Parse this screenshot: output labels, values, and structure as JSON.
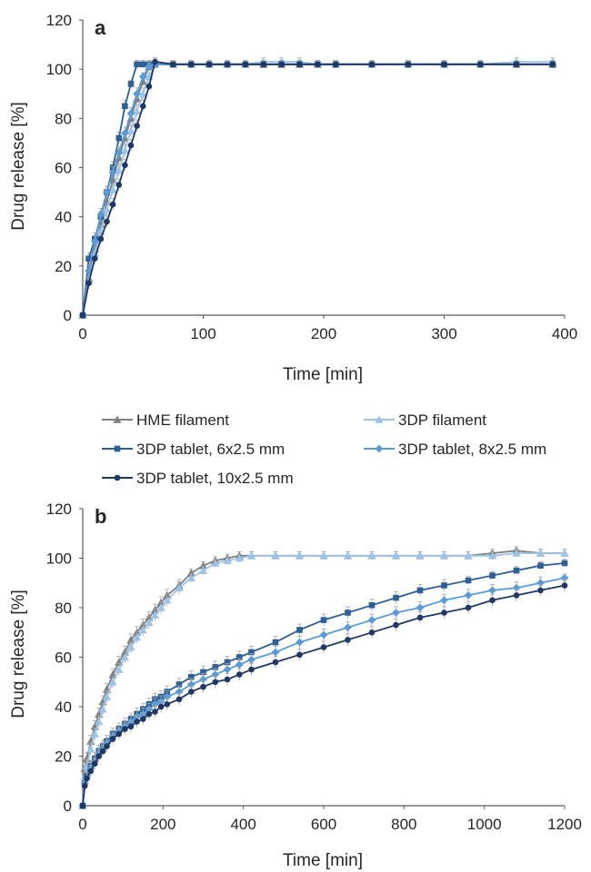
{
  "legend": {
    "placement": "between-panels",
    "entries": [
      {
        "name": "HME filament",
        "color": "#7f7f7f",
        "marker": "triangle"
      },
      {
        "name": "3DP filament",
        "color": "#9dc3e6",
        "marker": "triangle"
      },
      {
        "name": "3DP tablet, 6x2.5 mm",
        "color": "#2e5f96",
        "marker": "square"
      },
      {
        "name": "3DP tablet, 8x2.5 mm",
        "color": "#5b9bd5",
        "marker": "diamond"
      },
      {
        "name": "3DP tablet, 10x2.5 mm",
        "color": "#203864",
        "marker": "circle"
      }
    ]
  },
  "chart_data": [
    {
      "type": "line",
      "panel_label": "a",
      "xlabel": "Time [min]",
      "ylabel": "Drug release [%]",
      "xlim": [
        0,
        400
      ],
      "ylim": [
        0,
        120
      ],
      "xticks": [
        0,
        100,
        200,
        300,
        400
      ],
      "yticks": [
        0,
        20,
        40,
        60,
        80,
        100,
        120
      ],
      "grid": false,
      "series": [
        {
          "name": "HME filament",
          "color": "#7f7f7f",
          "marker": "triangle",
          "x": [
            0,
            5,
            10,
            15,
            20,
            25,
            30,
            35,
            40,
            45,
            50,
            55,
            60,
            75,
            90,
            105,
            120,
            135,
            150,
            165,
            180,
            195,
            210,
            240,
            270,
            300,
            330,
            360,
            390
          ],
          "y": [
            0,
            15,
            27,
            37,
            46,
            55,
            64,
            72,
            80,
            88,
            95,
            101,
            103,
            102,
            102,
            102,
            102,
            102,
            102,
            102,
            102,
            102,
            102,
            102,
            102,
            102,
            102,
            102,
            102
          ]
        },
        {
          "name": "3DP filament",
          "color": "#9dc3e6",
          "marker": "triangle",
          "x": [
            0,
            5,
            10,
            15,
            20,
            25,
            30,
            35,
            40,
            45,
            50,
            55,
            60,
            75,
            90,
            105,
            120,
            135,
            150,
            165,
            180,
            195,
            210,
            240,
            270,
            300,
            330,
            360,
            390
          ],
          "y": [
            0,
            14,
            25,
            34,
            43,
            51,
            59,
            67,
            75,
            83,
            90,
            97,
            102,
            102,
            102,
            102,
            102,
            102,
            103,
            103,
            103,
            102,
            102,
            102,
            102,
            102,
            102,
            103,
            103
          ]
        },
        {
          "name": "3DP tablet, 6x2.5 mm",
          "color": "#2e5f96",
          "marker": "square",
          "x": [
            0,
            5,
            10,
            15,
            20,
            25,
            30,
            35,
            40,
            45,
            50,
            55,
            60,
            75,
            90,
            105,
            120,
            135,
            150,
            165,
            180,
            195,
            210,
            240,
            270,
            300,
            330,
            360,
            390
          ],
          "y": [
            0,
            23,
            31,
            40,
            50,
            60,
            72,
            85,
            94,
            102,
            102,
            102,
            102,
            102,
            102,
            102,
            102,
            102,
            102,
            102,
            102,
            102,
            102,
            102,
            102,
            102,
            102,
            102,
            102
          ]
        },
        {
          "name": "3DP tablet, 8x2.5 mm",
          "color": "#5b9bd5",
          "marker": "diamond",
          "x": [
            0,
            5,
            10,
            15,
            20,
            25,
            30,
            35,
            40,
            45,
            50,
            55,
            60,
            75,
            90,
            105,
            120,
            135,
            150,
            165,
            180,
            195,
            210,
            240,
            270,
            300,
            330,
            360,
            390
          ],
          "y": [
            0,
            18,
            30,
            41,
            50,
            58,
            66,
            74,
            82,
            90,
            97,
            101,
            102,
            102,
            102,
            102,
            102,
            102,
            102,
            102,
            102,
            102,
            102,
            102,
            102,
            102,
            102,
            102,
            102
          ]
        },
        {
          "name": "3DP tablet, 10x2.5 mm",
          "color": "#203864",
          "marker": "circle",
          "x": [
            0,
            5,
            10,
            15,
            20,
            25,
            30,
            35,
            40,
            45,
            50,
            55,
            60,
            75,
            90,
            105,
            120,
            135,
            150,
            165,
            180,
            195,
            210,
            240,
            270,
            300,
            330,
            360,
            390
          ],
          "y": [
            0,
            13,
            23,
            31,
            38,
            45,
            53,
            61,
            69,
            77,
            85,
            93,
            103,
            102,
            102,
            102,
            102,
            102,
            102,
            102,
            102,
            102,
            102,
            102,
            102,
            102,
            102,
            102,
            102
          ]
        }
      ]
    },
    {
      "type": "line",
      "panel_label": "b",
      "xlabel": "Time [min]",
      "ylabel": "Drug release [%]",
      "xlim": [
        0,
        1200
      ],
      "ylim": [
        0,
        120
      ],
      "xticks": [
        0,
        200,
        400,
        600,
        800,
        1000,
        1200
      ],
      "yticks": [
        0,
        20,
        40,
        60,
        80,
        100,
        120
      ],
      "grid": false,
      "series": [
        {
          "name": "HME filament",
          "color": "#7f7f7f",
          "marker": "triangle",
          "x": [
            0,
            5,
            10,
            20,
            30,
            40,
            50,
            60,
            75,
            90,
            105,
            120,
            135,
            150,
            165,
            180,
            195,
            210,
            240,
            270,
            300,
            330,
            360,
            390,
            420,
            480,
            540,
            600,
            660,
            720,
            780,
            840,
            900,
            960,
            1020,
            1080,
            1140,
            1200
          ],
          "y": [
            0,
            15,
            19,
            26,
            32,
            37,
            42,
            47,
            53,
            58,
            62,
            67,
            70,
            73,
            76,
            79,
            82,
            85,
            89,
            94,
            97,
            99,
            100,
            101,
            101,
            101,
            101,
            101,
            101,
            101,
            101,
            101,
            101,
            101,
            102,
            103,
            102,
            102
          ]
        },
        {
          "name": "3DP filament",
          "color": "#9dc3e6",
          "marker": "triangle",
          "x": [
            0,
            5,
            10,
            20,
            30,
            40,
            50,
            60,
            75,
            90,
            105,
            120,
            135,
            150,
            165,
            180,
            195,
            210,
            240,
            270,
            300,
            330,
            360,
            390,
            420,
            480,
            540,
            600,
            660,
            720,
            780,
            840,
            900,
            960,
            1020,
            1080,
            1140,
            1200
          ],
          "y": [
            0,
            12,
            16,
            23,
            29,
            34,
            39,
            44,
            50,
            55,
            60,
            64,
            68,
            71,
            74,
            77,
            80,
            83,
            88,
            92,
            95,
            98,
            99,
            100,
            101,
            101,
            101,
            101,
            101,
            101,
            101,
            101,
            101,
            101,
            101,
            102,
            102,
            102
          ]
        },
        {
          "name": "3DP tablet, 6x2.5 mm",
          "color": "#2e5f96",
          "marker": "square",
          "x": [
            0,
            5,
            10,
            20,
            30,
            40,
            50,
            60,
            75,
            90,
            105,
            120,
            135,
            150,
            165,
            180,
            195,
            210,
            240,
            270,
            300,
            330,
            360,
            390,
            420,
            480,
            540,
            600,
            660,
            720,
            780,
            840,
            900,
            960,
            1020,
            1080,
            1140,
            1200
          ],
          "y": [
            0,
            9,
            12,
            16,
            19,
            22,
            24,
            26,
            29,
            31,
            33,
            35,
            37,
            39,
            41,
            43,
            44,
            46,
            49,
            52,
            54,
            56,
            58,
            60,
            62,
            66,
            71,
            75,
            78,
            81,
            84,
            87,
            89,
            91,
            93,
            95,
            97,
            98
          ]
        },
        {
          "name": "3DP tablet, 8x2.5 mm",
          "color": "#5b9bd5",
          "marker": "diamond",
          "x": [
            0,
            5,
            10,
            20,
            30,
            40,
            50,
            60,
            75,
            90,
            105,
            120,
            135,
            150,
            165,
            180,
            195,
            210,
            240,
            270,
            300,
            330,
            360,
            390,
            420,
            480,
            540,
            600,
            660,
            720,
            780,
            840,
            900,
            960,
            1020,
            1080,
            1140,
            1200
          ],
          "y": [
            0,
            9,
            11,
            15,
            18,
            21,
            23,
            25,
            28,
            30,
            32,
            34,
            36,
            37,
            39,
            41,
            42,
            44,
            46,
            49,
            51,
            53,
            55,
            57,
            59,
            62,
            66,
            69,
            72,
            75,
            78,
            80,
            83,
            85,
            87,
            88,
            90,
            92
          ]
        },
        {
          "name": "3DP tablet, 10x2.5 mm",
          "color": "#203864",
          "marker": "circle",
          "x": [
            0,
            5,
            10,
            20,
            30,
            40,
            50,
            60,
            75,
            90,
            105,
            120,
            135,
            150,
            165,
            180,
            195,
            210,
            240,
            270,
            300,
            330,
            360,
            390,
            420,
            480,
            540,
            600,
            660,
            720,
            780,
            840,
            900,
            960,
            1020,
            1080,
            1140,
            1200
          ],
          "y": [
            0,
            8,
            11,
            14,
            17,
            20,
            22,
            24,
            27,
            29,
            31,
            32,
            34,
            35,
            37,
            38,
            40,
            41,
            43,
            46,
            48,
            50,
            51,
            53,
            55,
            58,
            61,
            64,
            67,
            70,
            73,
            76,
            78,
            80,
            83,
            85,
            87,
            89
          ]
        }
      ]
    }
  ]
}
